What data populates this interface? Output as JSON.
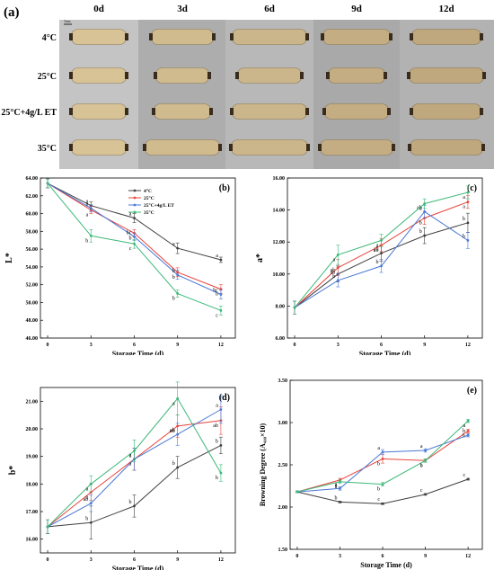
{
  "figure": {
    "photo_panel_label": "(a)",
    "days": [
      "0d",
      "3d",
      "6d",
      "9d",
      "12d"
    ],
    "treatments": [
      "4°C",
      "25°C",
      "25°C+4g/L ET",
      "35°C"
    ],
    "scale_bar_label": "5cm",
    "colors": {
      "4C": "#404040",
      "25C": "#e8453c",
      "25C_ET": "#4a78d4",
      "35C": "#3cb878",
      "photo_background": "#b4b4b4",
      "root_color": "#d8c397"
    }
  },
  "chart_data": [
    {
      "type": "line",
      "panel_label": "(b)",
      "xlabel": "Storage Time (d)",
      "ylabel": "L*",
      "x": [
        0,
        3,
        6,
        9,
        12
      ],
      "xticks": [
        "0",
        "3",
        "6",
        "9",
        "12"
      ],
      "ylim": [
        46,
        64
      ],
      "yticks": [
        "46.00",
        "48.00",
        "50.00",
        "52.00",
        "54.00",
        "56.00",
        "58.00",
        "60.00",
        "62.00",
        "64.00"
      ],
      "legend_position": "top-right",
      "series": [
        {
          "name": "4°C",
          "color": "#404040",
          "values": [
            63.4,
            60.9,
            59.5,
            56.1,
            54.8
          ],
          "errors": [
            0.5,
            0.4,
            0.5,
            0.6,
            0.3
          ],
          "letters": [
            "",
            "a",
            "a",
            "a",
            "a"
          ]
        },
        {
          "name": "25°C",
          "color": "#e8453c",
          "values": [
            63.4,
            60.4,
            57.8,
            53.4,
            51.5
          ],
          "errors": [
            0.5,
            0.4,
            0.4,
            0.5,
            0.5
          ],
          "letters": [
            "",
            "a",
            "b",
            "b",
            "b"
          ]
        },
        {
          "name": "25°C+4g/L ET",
          "color": "#4a78d4",
          "values": [
            63.4,
            60.6,
            57.4,
            53.1,
            50.9
          ],
          "errors": [
            0.5,
            0.4,
            0.4,
            0.5,
            0.5
          ],
          "letters": [
            "",
            "a",
            "bc",
            "b",
            "bc"
          ]
        },
        {
          "name": "35°C",
          "color": "#3cb878",
          "values": [
            63.4,
            57.5,
            56.6,
            51.0,
            49.1
          ],
          "errors": [
            0.5,
            0.7,
            0.5,
            0.4,
            0.5
          ],
          "letters": [
            "",
            "b",
            "c",
            "b",
            "c"
          ]
        }
      ]
    },
    {
      "type": "line",
      "panel_label": "(c)",
      "xlabel": "Storage Time (d)",
      "ylabel": "a*",
      "x": [
        0,
        3,
        6,
        9,
        12
      ],
      "xticks": [
        "0",
        "3",
        "6",
        "9",
        "12"
      ],
      "ylim": [
        6,
        16
      ],
      "yticks": [
        "6.00",
        "8.00",
        "10.00",
        "12.00",
        "14.00",
        "16.00"
      ],
      "series": [
        {
          "name": "4°C",
          "color": "#404040",
          "values": [
            7.9,
            10.0,
            11.3,
            12.4,
            13.2
          ],
          "errors": [
            0.4,
            0.5,
            0.5,
            0.5,
            0.6
          ],
          "letters": [
            "",
            "ab",
            "ab",
            "b",
            "b"
          ]
        },
        {
          "name": "25°C",
          "color": "#e8453c",
          "values": [
            7.9,
            10.4,
            11.8,
            13.5,
            14.5
          ],
          "errors": [
            0.4,
            0.5,
            0.4,
            0.4,
            0.4
          ],
          "letters": [
            "",
            "ab",
            "ab",
            "b",
            "a"
          ]
        },
        {
          "name": "25°C+4g/L ET",
          "color": "#4a78d4",
          "values": [
            7.9,
            9.6,
            10.5,
            13.9,
            12.1
          ],
          "errors": [
            0.4,
            0.4,
            0.4,
            0.4,
            0.5
          ],
          "letters": [
            "",
            "b",
            "b",
            "ab",
            "b"
          ]
        },
        {
          "name": "35°C",
          "color": "#3cb878",
          "values": [
            7.9,
            11.2,
            12.1,
            14.4,
            15.1
          ],
          "errors": [
            0.4,
            0.6,
            0.4,
            0.3,
            0.4
          ],
          "letters": [
            "",
            "a",
            "a",
            "a",
            "a"
          ]
        }
      ]
    },
    {
      "type": "line",
      "panel_label": "(d)",
      "xlabel": "Storage Time (d)",
      "ylabel": "b*",
      "x": [
        0,
        3,
        6,
        9,
        12
      ],
      "xticks": [
        "0",
        "3",
        "6",
        "9",
        "12"
      ],
      "ylim": [
        15.5,
        21.5
      ],
      "yticks": [
        "16.00",
        "17.00",
        "18.00",
        "19.00",
        "20.00",
        "21.00"
      ],
      "series": [
        {
          "name": "4°C",
          "color": "#404040",
          "values": [
            16.45,
            16.6,
            17.2,
            18.6,
            19.4
          ],
          "errors": [
            0.25,
            0.6,
            0.4,
            0.4,
            0.3
          ],
          "letters": [
            "",
            "b",
            "b",
            "b",
            "b"
          ]
        },
        {
          "name": "25°C",
          "color": "#e8453c",
          "values": [
            16.45,
            17.7,
            18.9,
            20.1,
            20.3
          ],
          "errors": [
            0.25,
            0.3,
            0.4,
            0.4,
            0.5
          ],
          "letters": [
            "",
            "a",
            "a",
            "ab",
            "ab"
          ]
        },
        {
          "name": "25°C+4g/L ET",
          "color": "#4a78d4",
          "values": [
            16.45,
            17.3,
            18.9,
            19.8,
            20.7
          ],
          "errors": [
            0.25,
            0.3,
            0.4,
            0.4,
            0.5
          ],
          "letters": [
            "",
            "ab",
            "a",
            "ab",
            "a"
          ]
        },
        {
          "name": "35°C",
          "color": "#3cb878",
          "values": [
            16.45,
            18.0,
            19.2,
            21.1,
            18.4
          ],
          "errors": [
            0.25,
            0.3,
            0.4,
            0.6,
            0.3
          ],
          "letters": [
            "",
            "a",
            "a",
            "a",
            "b"
          ]
        }
      ]
    },
    {
      "type": "line",
      "panel_label": "(e)",
      "xlabel": "Storage Time (d)",
      "ylabel": "Browning Degree (A₄₁₀×10)",
      "x": [
        0,
        3,
        6,
        9,
        12
      ],
      "xticks": [
        "0",
        "3",
        "6",
        "9",
        "12"
      ],
      "ylim": [
        1.5,
        3.5
      ],
      "yticks": [
        "1.50",
        "2.00",
        "2.50",
        "3.00",
        "3.50"
      ],
      "series": [
        {
          "name": "4°C",
          "color": "#404040",
          "values": [
            2.18,
            2.06,
            2.04,
            2.15,
            2.33
          ],
          "errors": [
            0.01,
            0.01,
            0.01,
            0.01,
            0.01
          ],
          "letters": [
            "",
            "b",
            "c",
            "c",
            "c"
          ]
        },
        {
          "name": "25°C",
          "color": "#e8453c",
          "values": [
            2.18,
            2.32,
            2.57,
            2.55,
            2.9
          ],
          "errors": [
            0.01,
            0.02,
            0.05,
            0.02,
            0.02
          ],
          "letters": [
            "",
            "a",
            "b",
            "b",
            "b"
          ]
        },
        {
          "name": "25°C+4g/L ET",
          "color": "#4a78d4",
          "values": [
            2.18,
            2.22,
            2.65,
            2.67,
            2.85
          ],
          "errors": [
            0.01,
            0.02,
            0.03,
            0.02,
            0.02
          ],
          "letters": [
            "",
            "a",
            "a",
            "a",
            "b"
          ]
        },
        {
          "name": "35°C",
          "color": "#3cb878",
          "values": [
            2.18,
            2.3,
            2.27,
            2.55,
            3.02
          ],
          "errors": [
            0.01,
            0.02,
            0.02,
            0.02,
            0.02
          ],
          "letters": [
            "",
            "a",
            "b",
            "b",
            "a"
          ]
        }
      ]
    }
  ]
}
